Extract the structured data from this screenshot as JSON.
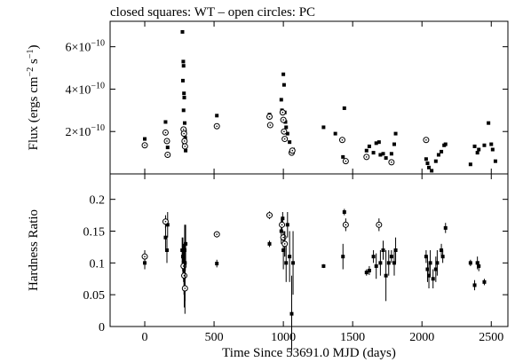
{
  "figure": {
    "title": "closed squares: WT – open circles: PC",
    "xlabel": "Time Since 53691.0 MJD (days)"
  },
  "chart_data": [
    {
      "type": "scatter",
      "panel": "top",
      "ylabel_main": "Flux (ergs cm",
      "ylabel_exp1": "−2",
      "ylabel_mid": " s",
      "ylabel_exp2": "−1",
      "ylabel_end": ")",
      "xlim": [
        -250,
        2620
      ],
      "ylim": [
        0,
        7.2e-10
      ],
      "xticks": [
        0,
        500,
        1000,
        1500,
        2000,
        2500
      ],
      "xtick_labels": [
        "0",
        "500",
        "1000",
        "1500",
        "2000",
        "2500"
      ],
      "yticks": [
        2e-10,
        4e-10,
        6e-10
      ],
      "ytick_mantissa": [
        "2×10",
        "4×10",
        "6×10"
      ],
      "ytick_exponent": [
        "−10",
        "−10",
        "−10"
      ],
      "series": [
        {
          "name": "WT",
          "marker": "filled-square",
          "points": [
            [
              0,
              1.65e-10
            ],
            [
              150,
              2.45e-10
            ],
            [
              165,
              1.25e-10
            ],
            [
              272,
              6.7e-10
            ],
            [
              278,
              5.3e-10
            ],
            [
              280,
              5.1e-10
            ],
            [
              275,
              4.4e-10
            ],
            [
              283,
              3.8e-10
            ],
            [
              285,
              3.6e-10
            ],
            [
              280,
              3e-10
            ],
            [
              288,
              2.4e-10
            ],
            [
              290,
              2e-10
            ],
            [
              292,
              1.7e-10
            ],
            [
              285,
              1.4e-10
            ],
            [
              295,
              1.1e-10
            ],
            [
              520,
              2.75e-10
            ],
            [
              900,
              2.8e-10
            ],
            [
              985,
              3.5e-10
            ],
            [
              990,
              3e-10
            ],
            [
              1000,
              4.7e-10
            ],
            [
              1005,
              4.2e-10
            ],
            [
              1010,
              2.9e-10
            ],
            [
              1015,
              2.45e-10
            ],
            [
              1020,
              2.2e-10
            ],
            [
              1030,
              1.9e-10
            ],
            [
              1045,
              1.5e-10
            ],
            [
              1070,
              1.15e-10
            ],
            [
              1290,
              2.2e-10
            ],
            [
              1375,
              1.9e-10
            ],
            [
              1430,
              8e-11
            ],
            [
              1440,
              3.1e-10
            ],
            [
              1600,
              1.1e-10
            ],
            [
              1620,
              1.3e-10
            ],
            [
              1650,
              1e-10
            ],
            [
              1670,
              1.45e-10
            ],
            [
              1690,
              1.5e-10
            ],
            [
              1700,
              9e-11
            ],
            [
              1720,
              9.5e-11
            ],
            [
              1740,
              7.5e-11
            ],
            [
              1780,
              9.5e-11
            ],
            [
              1800,
              1.4e-10
            ],
            [
              1810,
              1.9e-10
            ],
            [
              2030,
              7e-11
            ],
            [
              2040,
              5e-11
            ],
            [
              2050,
              3e-11
            ],
            [
              2070,
              1.5e-11
            ],
            [
              2100,
              6e-11
            ],
            [
              2120,
              9e-11
            ],
            [
              2140,
              1.05e-10
            ],
            [
              2160,
              1.35e-10
            ],
            [
              2170,
              1.4e-10
            ],
            [
              2350,
              4.5e-11
            ],
            [
              2380,
              1.3e-10
            ],
            [
              2400,
              1e-10
            ],
            [
              2410,
              1.15e-10
            ],
            [
              2450,
              1.35e-10
            ],
            [
              2480,
              2.4e-10
            ],
            [
              2500,
              1.4e-10
            ],
            [
              2510,
              1.15e-10
            ],
            [
              2530,
              6e-11
            ]
          ]
        },
        {
          "name": "PC",
          "marker": "open-circle",
          "points": [
            [
              0,
              1.35e-10
            ],
            [
              150,
              1.95e-10
            ],
            [
              160,
              1.55e-10
            ],
            [
              165,
              9e-11
            ],
            [
              280,
              2.1e-10
            ],
            [
              283,
              1.9e-10
            ],
            [
              287,
              1.55e-10
            ],
            [
              290,
              1.3e-10
            ],
            [
              520,
              2.25e-10
            ],
            [
              900,
              2.7e-10
            ],
            [
              905,
              2.3e-10
            ],
            [
              995,
              2.9e-10
            ],
            [
              1000,
              2.55e-10
            ],
            [
              1005,
              2e-10
            ],
            [
              1010,
              1.65e-10
            ],
            [
              1060,
              1e-10
            ],
            [
              1065,
              1.1e-10
            ],
            [
              1425,
              1.6e-10
            ],
            [
              1450,
              6e-11
            ],
            [
              1600,
              8e-11
            ],
            [
              1780,
              5.5e-11
            ],
            [
              2030,
              1.6e-10
            ]
          ]
        }
      ]
    },
    {
      "type": "scatter",
      "panel": "bottom",
      "ylabel": "Hardness Ratio",
      "xlim": [
        -250,
        2620
      ],
      "ylim": [
        0,
        0.24
      ],
      "xticks": [
        0,
        500,
        1000,
        1500,
        2000,
        2500
      ],
      "xtick_labels": [
        "0",
        "500",
        "1000",
        "1500",
        "2000",
        "2500"
      ],
      "yticks": [
        0,
        0.05,
        0.1,
        0.15,
        0.2
      ],
      "ytick_labels": [
        "0",
        "0.05",
        "0.1",
        "0.15",
        "0.2"
      ],
      "series": [
        {
          "name": "WT",
          "marker": "filled-square",
          "points": [
            [
              0,
              0.1,
              0.01
            ],
            [
              150,
              0.14,
              0.02
            ],
            [
              160,
              0.12,
              0.02
            ],
            [
              165,
              0.16,
              0.02
            ],
            [
              270,
              0.12,
              0.02
            ],
            [
              275,
              0.11,
              0.03
            ],
            [
              280,
              0.1,
              0.03
            ],
            [
              283,
              0.09,
              0.04
            ],
            [
              285,
              0.08,
              0.05
            ],
            [
              288,
              0.12,
              0.04
            ],
            [
              290,
              0.1,
              0.06
            ],
            [
              295,
              0.13,
              0.03
            ],
            [
              520,
              0.099,
              0.006
            ],
            [
              900,
              0.13,
              0.005
            ],
            [
              985,
              0.15,
              0.02
            ],
            [
              995,
              0.17,
              0.01
            ],
            [
              1000,
              0.12,
              0.03
            ],
            [
              1010,
              0.13,
              0.02
            ],
            [
              1020,
              0.1,
              0.03
            ],
            [
              1030,
              0.16,
              0.02
            ],
            [
              1045,
              0.11,
              0.04
            ],
            [
              1060,
              0.02,
              0.06
            ],
            [
              1070,
              0.1,
              0.05
            ],
            [
              1290,
              0.095,
              0.003
            ],
            [
              1430,
              0.11,
              0.02
            ],
            [
              1440,
              0.18,
              0.005
            ],
            [
              1600,
              0.085,
              0.005
            ],
            [
              1620,
              0.088,
              0.007
            ],
            [
              1650,
              0.11,
              0.01
            ],
            [
              1670,
              0.095,
              0.02
            ],
            [
              1700,
              0.1,
              0.02
            ],
            [
              1720,
              0.12,
              0.015
            ],
            [
              1740,
              0.08,
              0.04
            ],
            [
              1760,
              0.1,
              0.02
            ],
            [
              1780,
              0.11,
              0.01
            ],
            [
              1800,
              0.1,
              0.02
            ],
            [
              1810,
              0.12,
              0.02
            ],
            [
              2030,
              0.11,
              0.01
            ],
            [
              2040,
              0.09,
              0.02
            ],
            [
              2050,
              0.08,
              0.02
            ],
            [
              2060,
              0.1,
              0.02
            ],
            [
              2080,
              0.075,
              0.015
            ],
            [
              2100,
              0.09,
              0.02
            ],
            [
              2110,
              0.1,
              0.02
            ],
            [
              2140,
              0.12,
              0.01
            ],
            [
              2150,
              0.11,
              0.01
            ],
            [
              2170,
              0.155,
              0.008
            ],
            [
              2350,
              0.1,
              0.005
            ],
            [
              2380,
              0.065,
              0.008
            ],
            [
              2400,
              0.1,
              0.01
            ],
            [
              2410,
              0.095,
              0.008
            ],
            [
              2450,
              0.07,
              0.005
            ]
          ]
        },
        {
          "name": "PC",
          "marker": "open-circle",
          "points": [
            [
              0,
              0.11,
              0.01
            ],
            [
              150,
              0.165,
              0.01
            ],
            [
              280,
              0.095,
              0.02
            ],
            [
              285,
              0.08,
              0.03
            ],
            [
              290,
              0.06,
              0.04
            ],
            [
              520,
              0.145,
              0.005
            ],
            [
              900,
              0.175,
              0.006
            ],
            [
              990,
              0.16,
              0.01
            ],
            [
              1000,
              0.14,
              0.01
            ],
            [
              1010,
              0.13,
              0.02
            ],
            [
              1450,
              0.16,
              0.01
            ],
            [
              1690,
              0.16,
              0.01
            ]
          ]
        }
      ]
    }
  ]
}
